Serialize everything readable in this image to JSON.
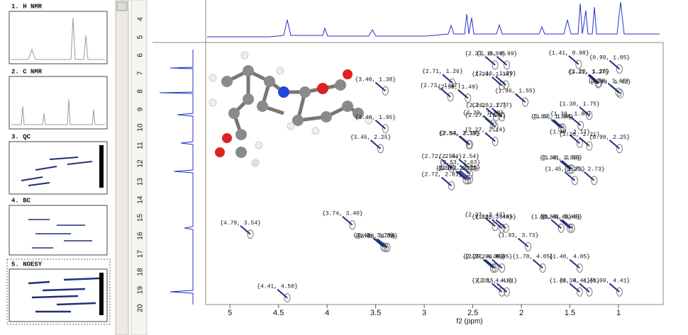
{
  "sidebar": {
    "items": [
      "1. H NMR",
      "2. C NMR",
      "3. QC",
      "4. BC",
      "5. NOESY"
    ]
  },
  "ruler": {
    "labels": [
      4,
      5,
      6,
      7,
      8,
      9,
      10,
      11,
      12,
      13,
      14,
      15,
      16,
      17,
      18,
      19,
      20
    ]
  },
  "chart_data": {
    "type": "scatter",
    "xlabel": "f2 (ppm)",
    "xlim": [
      5.25,
      0.54
    ],
    "xticks": [
      5.0,
      4.5,
      4.0,
      3.5,
      3.0,
      2.5,
      2.0,
      1.5,
      1.0
    ],
    "ylim": [
      0.65,
      4.6
    ],
    "color": "#1f2f7a",
    "x": [
      2.27,
      2.15,
      1.41,
      0.99,
      2.71,
      2.2,
      2.16,
      1.21,
      1.2,
      0.98,
      3.4,
      2.55,
      1.96,
      1.0,
      2.73,
      2.26,
      2.2,
      1.3,
      3.4,
      2.27,
      1.59,
      1.57,
      1.39,
      2.29,
      1.4,
      2.54,
      2.53,
      3.45,
      2.27,
      1.3,
      0.99,
      2.72,
      2.54,
      1.5,
      1.48,
      2.57,
      2.55,
      1.45,
      1.25,
      2.72,
      2.53,
      2.53,
      3.74,
      4.79,
      2.2,
      2.16,
      1.59,
      2.27,
      1.93,
      1.48,
      1.5,
      3.42,
      3.4,
      3.38,
      2.29,
      2.27,
      1.78,
      2.2,
      1.4,
      1.4,
      0.99,
      2.2,
      2.15,
      4.41,
      1.3
    ],
    "y": [
      0.99,
      0.99,
      0.98,
      1.05,
      1.26,
      1.3,
      1.29,
      1.27,
      1.26,
      1.42,
      1.38,
      1.49,
      1.55,
      1.4,
      1.47,
      1.77,
      1.77,
      1.75,
      1.95,
      1.92,
      1.94,
      1.94,
      1.9,
      1.88,
      2.17,
      2.19,
      2.19,
      2.25,
      2.14,
      2.21,
      2.25,
      2.54,
      2.54,
      2.56,
      2.56,
      2.72,
      2.72,
      2.73,
      2.73,
      2.81,
      2.63,
      2.71,
      3.4,
      3.54,
      3.45,
      3.45,
      3.45,
      3.42,
      3.73,
      3.45,
      3.45,
      3.73,
      3.74,
      3.74,
      4.05,
      4.05,
      4.05,
      4.05,
      4.05,
      4.41,
      4.41,
      4.41,
      4.41,
      4.5,
      4.41
    ],
    "value_labels": [
      "{2.27, 0.99}",
      "{2.15, 0.99}",
      "{1.41, 0.98}",
      "{0.99, 1.05}",
      "{2.71, 1.26}",
      "{2.20, 1.30}",
      "{2.16, 1.29}",
      "{1.21, 1.27}",
      "{1.20, 1.26}",
      "{0.98, 1.42}",
      "{3.40, 1.38}",
      "{2.55, 1.49}",
      "{1.96, 1.55}",
      "{1.00, 1.40}",
      "{2.73, 1.47}",
      "{2.26, 1.77}",
      "{2.20, 1.77}",
      "{1.30, 1.75}",
      "{3.40, 1.95}",
      "{2.27, 1.92}",
      "{1.59, 1.94}",
      "{1.57, 1.94}",
      "{1.39, 1.90}",
      "{2.29, 1.88}",
      "{1.40, 2.17}",
      "{2.54, 2.19}",
      "{2.53, 2.19}",
      "{3.45, 2.25}",
      "{2.27, 2.14}",
      "{1.30, 2.21}",
      "{0.99, 2.25}",
      "{2.72, 2.54}",
      "{2.54, 2.54}",
      "{1.50, 2.56}",
      "{1.48, 2.56}",
      "{2.57, 2.72}",
      "{2.55, 2.72}",
      "{1.45, 2.73}",
      "{1.25, 2.73}",
      "{2.72, 2.81}",
      "{2.53, 2.63}",
      "{2.53, 2.71}",
      "{3.74, 3.40}",
      "{4.79, 3.54}",
      "{2.20, 3.45}",
      "{2.16, 3.45}",
      "{1.59, 3.45}",
      "{2.27, 3.42}",
      "{1.93, 3.73}",
      "{1.48, 3.45}",
      "{1.50, 3.45}",
      "{3.42, 3.73}",
      "{3.40, 3.74}",
      "{3.38, 3.74}",
      "{2.29, 4.05}",
      "{2.27, 4.05}",
      "{1.78, 4.05}",
      "{2.20, 4.05}",
      "{1.40, 4.05}",
      "{1.40, 4.41}",
      "{0.99, 4.41}",
      "{2.20, 4.41}",
      "{2.15, 4.41}",
      "{4.41, 4.50}",
      "{1.30, 4.41}"
    ]
  }
}
